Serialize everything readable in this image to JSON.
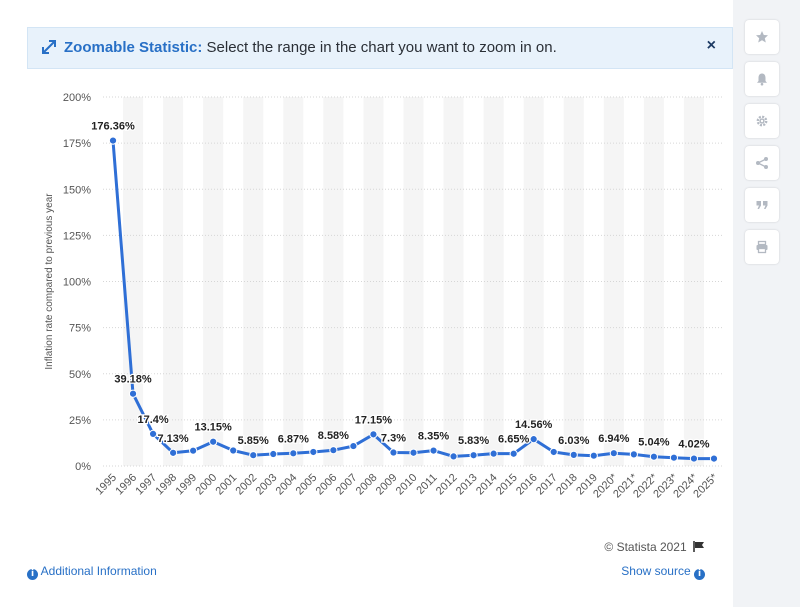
{
  "banner": {
    "title": "Zoomable Statistic:",
    "text": " Select the range in the chart you want to zoom in on.",
    "close": "×"
  },
  "sidebar": {
    "icons": [
      "star-icon",
      "bell-icon",
      "gear-icon",
      "share-icon",
      "quote-icon",
      "print-icon"
    ]
  },
  "footer": {
    "credit": "© Statista 2021",
    "additional_info": "Additional Information",
    "show_source": "Show source"
  },
  "chart_data": {
    "type": "line",
    "ylabel": "Inflation rate compared to previous year",
    "ylim": [
      0,
      200
    ],
    "yticks": [
      "0%",
      "25%",
      "50%",
      "75%",
      "100%",
      "125%",
      "150%",
      "175%",
      "200%"
    ],
    "ytick_values": [
      0,
      25,
      50,
      75,
      100,
      125,
      150,
      175,
      200
    ],
    "categories": [
      "1995",
      "1996",
      "1997",
      "1998",
      "1999",
      "2000",
      "2001",
      "2002",
      "2003",
      "2004",
      "2005",
      "2006",
      "2007",
      "2008",
      "2009",
      "2010",
      "2011",
      "2012",
      "2013",
      "2014",
      "2015",
      "2016",
      "2017",
      "2018",
      "2019",
      "2020*",
      "2021*",
      "2022*",
      "2023*",
      "2024*",
      "2025*"
    ],
    "values": [
      176.36,
      39.18,
      17.4,
      7.13,
      8.3,
      13.15,
      8.4,
      5.85,
      6.5,
      6.87,
      7.6,
      8.58,
      10.8,
      17.15,
      7.3,
      7.2,
      8.35,
      5.2,
      5.83,
      6.7,
      6.65,
      14.56,
      7.6,
      6.03,
      5.6,
      6.94,
      6.3,
      5.04,
      4.5,
      4.02,
      4.0
    ],
    "labels": [
      "176.36%",
      "39.18%",
      "17.4%",
      "7.13%",
      "",
      "13.15%",
      "",
      "5.85%",
      "",
      "6.87%",
      "",
      "8.58%",
      "",
      "17.15%",
      "7.3%",
      "",
      "8.35%",
      "",
      "5.83%",
      "",
      "6.65%",
      "14.56%",
      "",
      "6.03%",
      "",
      "6.94%",
      "",
      "5.04%",
      "",
      "4.02%",
      ""
    ],
    "line_color": "#2f6fd6",
    "grid": true
  }
}
